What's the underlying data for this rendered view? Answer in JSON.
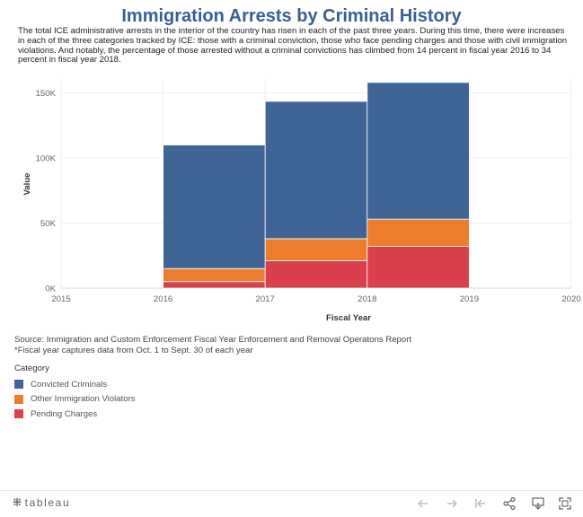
{
  "header": {
    "title": "Immigration Arrests by Criminal History",
    "description": "The total ICE administrative arrests in the interior of the country has risen in each of the past three years. During this time, there were increases in each of the three categories tracked by ICE: those with a criminal conviction, those who face pending charges and those with civil immigration violations. And notably, the percentage of those arrested without a criminal convictions has climbed from 14 percent in fiscal year 2016 to 34 percent in fiscal year 2018."
  },
  "chart_data": {
    "type": "bar",
    "stacked": true,
    "title": "Immigration Arrests by Criminal History",
    "xlabel": "Fiscal Year",
    "ylabel": "Value",
    "x_ticks": [
      "2015",
      "2016",
      "2017",
      "2018",
      "2019",
      "2020"
    ],
    "y_ticks": [
      "0K",
      "50K",
      "100K",
      "150K"
    ],
    "xlim": [
      2015,
      2020
    ],
    "ylim": [
      0,
      160000
    ],
    "categories": [
      "2016",
      "2017",
      "2018"
    ],
    "series": [
      {
        "name": "Pending Charges",
        "color": "#d9404b",
        "values": [
          5000,
          21000,
          32000
        ]
      },
      {
        "name": "Other Immigration Violators",
        "color": "#ec7d2c",
        "values": [
          10000,
          17000,
          21000
        ]
      },
      {
        "name": "Convicted Criminals",
        "color": "#3f6596",
        "values": [
          95000,
          105500,
          105000
        ]
      }
    ]
  },
  "source": {
    "line1": "Source: Immigration and Custom Enforcement Fiscal Year Enforcement and Removal Operatons Report",
    "line2": "*Fiscal year captures data from Oct. 1 to Sept. 30 of each year"
  },
  "legend": {
    "title": "Category",
    "items": [
      {
        "label": "Convicted Criminals",
        "color": "#3f6596"
      },
      {
        "label": "Other Immigration Violators",
        "color": "#ec7d2c"
      },
      {
        "label": "Pending Charges",
        "color": "#d9404b"
      }
    ]
  },
  "footer": {
    "logo": "tableau",
    "controls": [
      "undo-icon",
      "redo-icon",
      "revert-icon",
      "share-icon",
      "download-icon",
      "fullscreen-icon"
    ]
  }
}
